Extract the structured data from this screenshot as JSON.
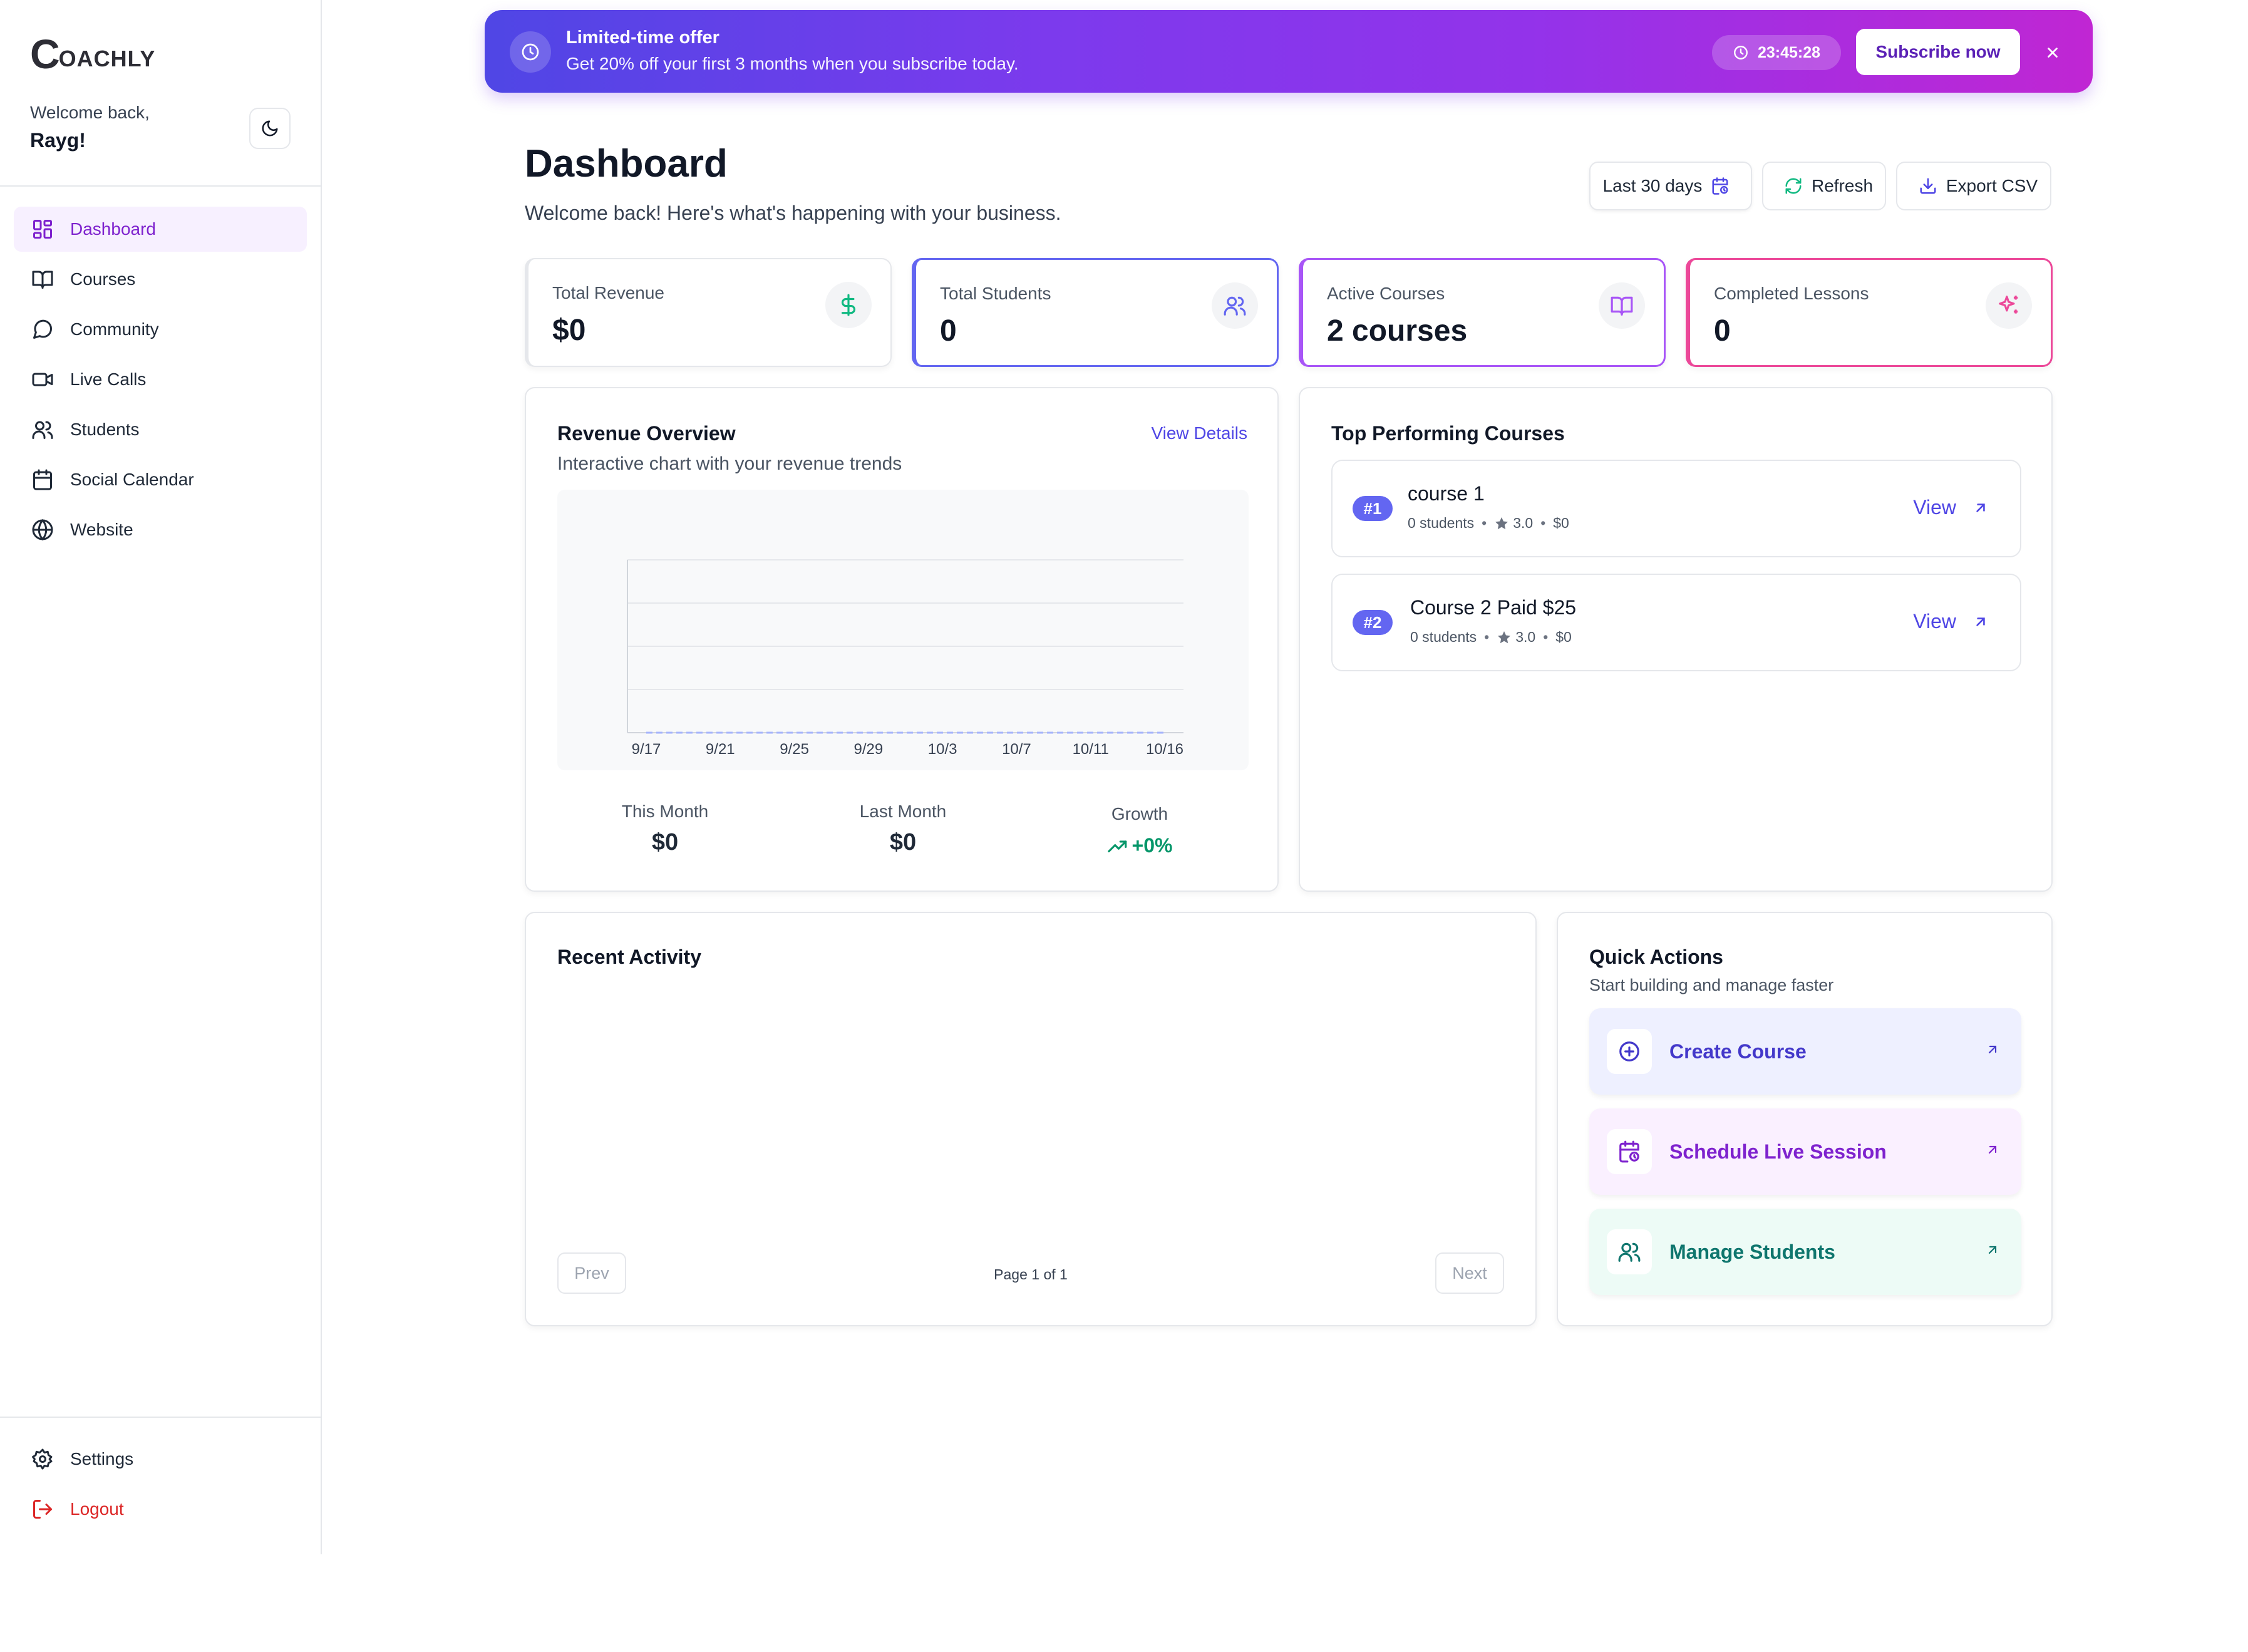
{
  "app": {
    "logo_c": "C",
    "logo_rest": "OACHLY"
  },
  "user": {
    "welcome": "Welcome back,",
    "name": "Rayg!"
  },
  "sidebar": {
    "items": [
      {
        "label": "Dashboard",
        "icon": "dashboard-grid-icon",
        "active": true
      },
      {
        "label": "Courses",
        "icon": "book-icon"
      },
      {
        "label": "Community",
        "icon": "chat-bubble-icon"
      },
      {
        "label": "Live Calls",
        "icon": "video-icon"
      },
      {
        "label": "Students",
        "icon": "users-icon"
      },
      {
        "label": "Social Calendar",
        "icon": "calendar-icon"
      },
      {
        "label": "Website",
        "icon": "globe-icon"
      }
    ],
    "bottom": [
      {
        "label": "Settings",
        "icon": "gear-icon"
      },
      {
        "label": "Logout",
        "icon": "logout-icon"
      }
    ]
  },
  "promo": {
    "title": "Limited-time offer",
    "subtitle": "Get 20% off your first 3 months when you subscribe today.",
    "timer": "23:45:28",
    "cta": "Subscribe now"
  },
  "header": {
    "title": "Dashboard",
    "subtitle": "Welcome back! Here's what's happening with your business.",
    "range": "Last 30 days",
    "refresh": "Refresh",
    "export": "Export CSV"
  },
  "stats": [
    {
      "label": "Total Revenue",
      "value": "$0",
      "icon": "dollar-icon"
    },
    {
      "label": "Total Students",
      "value": "0",
      "icon": "users-icon"
    },
    {
      "label": "Active Courses",
      "value": "2 courses",
      "icon": "book-icon"
    },
    {
      "label": "Completed Lessons",
      "value": "0",
      "icon": "sparkle-icon"
    }
  ],
  "revenue": {
    "title": "Revenue Overview",
    "subtitle": "Interactive chart with your revenue trends",
    "view_details": "View Details",
    "this_month_label": "This Month",
    "this_month_value": "$0",
    "last_month_label": "Last Month",
    "last_month_value": "$0",
    "growth_label": "Growth",
    "growth_value": "+0%"
  },
  "chart_data": {
    "type": "line",
    "x": [
      "9/17",
      "9/21",
      "9/25",
      "9/29",
      "10/3",
      "10/7",
      "10/11",
      "10/16"
    ],
    "values": [
      0,
      0,
      0,
      0,
      0,
      0,
      0,
      0
    ],
    "grid": true
  },
  "top_courses": {
    "title": "Top Performing Courses",
    "items": [
      {
        "rank": "#1",
        "name": "course 1",
        "students": "0 students",
        "rating": "3.0",
        "price": "$0",
        "view": "View"
      },
      {
        "rank": "#2",
        "name": "Course 2 Paid $25",
        "students": "0 students",
        "rating": "3.0",
        "price": "$0",
        "view": "View"
      }
    ]
  },
  "activity": {
    "title": "Recent Activity",
    "prev": "Prev",
    "next": "Next",
    "page": "Page 1 of 1"
  },
  "quick_actions": {
    "title": "Quick Actions",
    "subtitle": "Start building and manage faster",
    "items": [
      {
        "label": "Create Course",
        "icon": "plus-circle-icon"
      },
      {
        "label": "Schedule Live Session",
        "icon": "calendar-clock-icon"
      },
      {
        "label": "Manage Students",
        "icon": "users-icon"
      }
    ]
  },
  "colors": {
    "primary": "#4f46e5",
    "accent_purple": "#7e22ce",
    "pink": "#ec4899",
    "green": "#059669",
    "danger": "#dc2626"
  }
}
